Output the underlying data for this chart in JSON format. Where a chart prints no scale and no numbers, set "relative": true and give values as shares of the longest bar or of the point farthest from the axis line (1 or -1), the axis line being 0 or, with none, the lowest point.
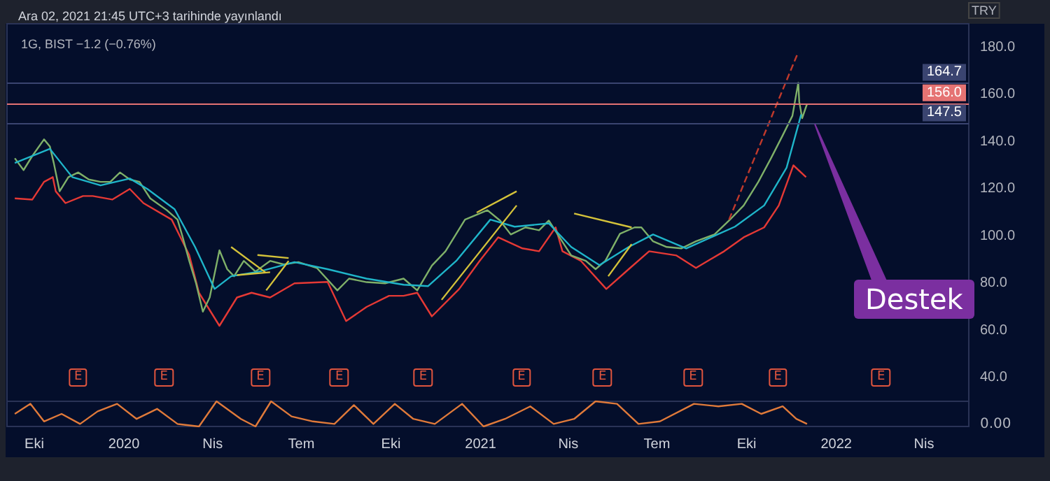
{
  "chart_data": [
    {
      "type": "line",
      "title": "Ara 02, 2021 21:45 UTC+3 tarihinde yayınlandı",
      "subtitle": "1G, BIST −1.2 (−0.76%)",
      "ylabel": "TRY",
      "xlim": [
        "2019-09-03",
        "2022-05-17"
      ],
      "ylim": [
        30,
        190
      ],
      "yticks": [
        {
          "value": 40,
          "label": "40.0"
        },
        {
          "value": 60,
          "label": "60.0"
        },
        {
          "value": 80,
          "label": "80.0"
        },
        {
          "value": 100,
          "label": "100.0"
        },
        {
          "value": 120,
          "label": "120.0"
        },
        {
          "value": 140,
          "label": "140.0"
        },
        {
          "value": 160,
          "label": "160.0"
        },
        {
          "value": 180,
          "label": "180.0"
        }
      ],
      "tick_labels": "y",
      "grid": false,
      "marker": "none",
      "series": [
        {
          "color": "#e53935",
          "x": [
            "2019-09-11",
            "2019-09-29",
            "2019-10-11",
            "2019-10-20",
            "2019-10-23",
            "2019-11-02",
            "2019-11-20",
            "2019-11-30",
            "2019-12-20",
            "2020-01-07",
            "2020-01-21",
            "2020-02-19",
            "2020-03-08",
            "2020-03-18",
            "2020-04-08",
            "2020-04-26",
            "2020-05-11",
            "2020-05-30",
            "2020-06-24",
            "2020-07-28",
            "2020-08-16",
            "2020-09-06",
            "2020-09-29",
            "2020-10-14",
            "2020-10-28",
            "2020-11-12",
            "2020-12-10",
            "2020-12-31",
            "2021-01-19",
            "2021-02-13",
            "2021-03-02",
            "2021-03-19",
            "2021-03-26",
            "2021-04-14",
            "2021-05-10",
            "2021-06-02",
            "2021-06-23",
            "2021-07-21",
            "2021-08-10",
            "2021-09-08",
            "2021-09-28",
            "2021-10-19",
            "2021-11-03",
            "2021-11-18",
            "2021-12-01"
          ],
          "values": [
            116,
            115.5,
            123,
            125,
            119,
            114,
            117,
            117,
            115.5,
            120,
            114,
            107,
            92,
            76,
            62,
            74,
            76,
            74,
            80,
            80.6,
            64,
            70,
            74.7,
            74.7,
            76,
            66,
            77.6,
            89.5,
            99.5,
            94.8,
            93.6,
            103.7,
            93.6,
            89.5,
            77.6,
            86,
            93.6,
            91.8,
            86.5,
            93.6,
            99.5,
            103.7,
            113,
            130,
            125
          ]
        },
        {
          "color": "#7fb069",
          "x": [
            "2019-09-11",
            "2019-09-20",
            "2019-09-29",
            "2019-10-11",
            "2019-10-17",
            "2019-10-21",
            "2019-10-27",
            "2019-11-05",
            "2019-11-15",
            "2019-11-26",
            "2019-12-08",
            "2019-12-18",
            "2019-12-28",
            "2020-01-07",
            "2020-01-17",
            "2020-01-28",
            "2020-02-14",
            "2020-02-25",
            "2020-03-01",
            "2020-03-08",
            "2020-03-15",
            "2020-03-22",
            "2020-03-29",
            "2020-04-08",
            "2020-04-16",
            "2020-04-23",
            "2020-05-03",
            "2020-05-15",
            "2020-05-30",
            "2020-06-13",
            "2020-06-28",
            "2020-07-17",
            "2020-08-07",
            "2020-08-19",
            "2020-09-06",
            "2020-09-25",
            "2020-10-14",
            "2020-10-28",
            "2020-11-12",
            "2020-11-26",
            "2020-12-16",
            "2020-12-31",
            "2021-01-08",
            "2021-01-21",
            "2021-02-01",
            "2021-02-16",
            "2021-03-02",
            "2021-03-12",
            "2021-03-23",
            "2021-04-04",
            "2021-04-19",
            "2021-04-29",
            "2021-05-09",
            "2021-05-24",
            "2021-06-08",
            "2021-06-15",
            "2021-06-27",
            "2021-07-11",
            "2021-07-26",
            "2021-08-10",
            "2021-08-29",
            "2021-09-13",
            "2021-09-28",
            "2021-10-13",
            "2021-10-26",
            "2021-11-07",
            "2021-11-17",
            "2021-11-23",
            "2021-11-24",
            "2021-11-27",
            "2021-12-02"
          ],
          "values": [
            133,
            128,
            134,
            141,
            138,
            131,
            119,
            125,
            127,
            124,
            123,
            123,
            127,
            124,
            123,
            116,
            111,
            107,
            100,
            89.5,
            80,
            68,
            74,
            94,
            86,
            83,
            89.5,
            85,
            89.5,
            88,
            89,
            86.5,
            77,
            82,
            80.5,
            80,
            82,
            77,
            87.5,
            93.6,
            107,
            109.6,
            111,
            106.6,
            100.7,
            103.7,
            102.5,
            106.6,
            99.5,
            91.8,
            89.5,
            86,
            89.5,
            101,
            103.7,
            103.7,
            97.8,
            95.4,
            94.8,
            97.8,
            100.7,
            106.6,
            113,
            123,
            133,
            142.7,
            151,
            165,
            157,
            150,
            156
          ]
        },
        {
          "color": "#1fb5c9",
          "x": [
            "2019-09-11",
            "2019-10-17",
            "2019-11-09",
            "2019-12-08",
            "2020-01-07",
            "2020-01-25",
            "2020-02-22",
            "2020-03-14",
            "2020-04-03",
            "2020-04-20",
            "2020-05-19",
            "2020-06-24",
            "2020-07-28",
            "2020-09-06",
            "2020-10-14",
            "2020-11-08",
            "2020-12-07",
            "2021-01-11",
            "2021-02-05",
            "2021-03-12",
            "2021-04-04",
            "2021-05-03",
            "2021-06-02",
            "2021-06-27",
            "2021-07-31",
            "2021-09-19",
            "2021-10-19",
            "2021-11-11",
            "2021-11-26"
          ],
          "values": [
            131,
            137,
            125,
            121.5,
            124.4,
            120,
            111.4,
            95.4,
            77.6,
            83,
            85,
            89,
            86,
            82,
            79.4,
            78.8,
            89.5,
            107,
            104,
            105.4,
            95.4,
            87.7,
            95.4,
            100.7,
            94.8,
            104,
            113,
            129,
            151.6
          ]
        },
        {
          "color": "#d4c23a",
          "x": [
            "2020-04-20",
            "2020-05-25"
          ],
          "values": [
            95.4,
            84.7
          ]
        },
        {
          "color": "#d4c23a",
          "x": [
            "2020-04-26",
            "2020-05-30"
          ],
          "values": [
            83.5,
            84.7
          ]
        },
        {
          "color": "#d4c23a",
          "x": [
            "2020-05-17",
            "2020-06-18"
          ],
          "values": [
            92,
            90.7
          ]
        },
        {
          "color": "#d4c23a",
          "x": [
            "2020-05-26",
            "2020-06-18"
          ],
          "values": [
            77,
            89.5
          ]
        },
        {
          "color": "#d4c23a",
          "x": [
            "2020-12-28",
            "2021-02-07"
          ],
          "values": [
            110,
            119
          ]
        },
        {
          "color": "#d4c23a",
          "x": [
            "2020-11-22",
            "2021-02-07"
          ],
          "values": [
            73,
            113
          ]
        },
        {
          "color": "#d4c23a",
          "x": [
            "2021-04-07",
            "2021-06-05"
          ],
          "values": [
            109.6,
            103.7
          ]
        },
        {
          "color": "#d4c23a",
          "x": [
            "2021-05-12",
            "2021-06-05"
          ],
          "values": [
            83,
            96.6
          ]
        },
        {
          "color": "#c0392b",
          "line_style": "dashed",
          "x": [
            "2021-09-13",
            "2021-11-23"
          ],
          "values": [
            107,
            178
          ]
        }
      ],
      "ref_lines": [
        {
          "axis": "y",
          "value": 164.7,
          "label": "164.7",
          "color": "#3a4470"
        },
        {
          "axis": "y",
          "value": 147.5,
          "label": "147.5",
          "color": "#3a4470"
        },
        {
          "axis": "y",
          "value": 156.0,
          "label": "156.0",
          "color": "#e57373"
        }
      ],
      "annotations": [
        {
          "text": "Destek",
          "x": "2021-12-10",
          "y": 147.5
        },
        {
          "text": "E",
          "x": "2019-11-15",
          "y": 40
        },
        {
          "text": "E",
          "x": "2020-02-11",
          "y": 40
        },
        {
          "text": "E",
          "x": "2020-05-20",
          "y": 40
        },
        {
          "text": "E",
          "x": "2020-08-09",
          "y": 40
        },
        {
          "text": "E",
          "x": "2020-11-03",
          "y": 40
        },
        {
          "text": "E",
          "x": "2021-02-12",
          "y": 40
        },
        {
          "text": "E",
          "x": "2021-05-06",
          "y": 40
        },
        {
          "text": "E",
          "x": "2021-08-07",
          "y": 40
        },
        {
          "text": "E",
          "x": "2021-11-02",
          "y": 40
        },
        {
          "text": "E",
          "x": "2022-02-16",
          "y": 40
        }
      ]
    },
    {
      "type": "line",
      "relative": true,
      "marker": "none",
      "grid": false,
      "xlim": [
        "2019-09-03",
        "2022-05-17"
      ],
      "xticks": [
        {
          "value": "2019-10-01",
          "label": "Eki"
        },
        {
          "value": "2020-01-01",
          "label": "2020"
        },
        {
          "value": "2020-04-01",
          "label": "Nis"
        },
        {
          "value": "2020-07-01",
          "label": "Tem"
        },
        {
          "value": "2020-10-01",
          "label": "Eki"
        },
        {
          "value": "2021-01-01",
          "label": "2021"
        },
        {
          "value": "2021-04-01",
          "label": "Nis"
        },
        {
          "value": "2021-07-01",
          "label": "Tem"
        },
        {
          "value": "2021-10-01",
          "label": "Eki"
        },
        {
          "value": "2022-01-01",
          "label": "2022"
        },
        {
          "value": "2022-04-01",
          "label": "Nis"
        }
      ],
      "series": [
        {
          "color": "#e07a3a",
          "x": [
            "2019-09-11",
            "2019-09-27",
            "2019-10-11",
            "2019-10-29",
            "2019-11-17",
            "2019-12-05",
            "2019-12-25",
            "2020-01-14",
            "2020-02-04",
            "2020-02-25",
            "2020-03-18",
            "2020-04-05",
            "2020-04-30",
            "2020-05-15",
            "2020-05-31",
            "2020-06-21",
            "2020-07-13",
            "2020-08-04",
            "2020-08-24",
            "2020-09-13",
            "2020-10-05",
            "2020-10-24",
            "2020-11-15",
            "2020-12-13",
            "2021-01-04",
            "2021-01-26",
            "2021-02-21",
            "2021-03-17",
            "2021-04-07",
            "2021-04-29",
            "2021-05-21",
            "2021-06-12",
            "2021-07-04",
            "2021-08-08",
            "2021-09-02",
            "2021-09-26",
            "2021-10-16",
            "2021-11-07",
            "2021-11-21",
            "2021-12-02"
          ],
          "values": [
            0.5,
            0.9,
            0.2,
            0.5,
            0.1,
            0.6,
            0.9,
            0.3,
            0.7,
            0.1,
            0,
            1,
            0.3,
            0,
            1,
            0.4,
            0.2,
            0.1,
            0.85,
            0.1,
            0.9,
            0.3,
            0.1,
            0.9,
            0,
            0.3,
            0.8,
            0.1,
            0.3,
            1,
            0.9,
            0.1,
            0.2,
            0.9,
            0.8,
            0.9,
            0.5,
            0.8,
            0.3,
            0.1
          ]
        }
      ],
      "annotations": [
        "0.00"
      ]
    }
  ]
}
